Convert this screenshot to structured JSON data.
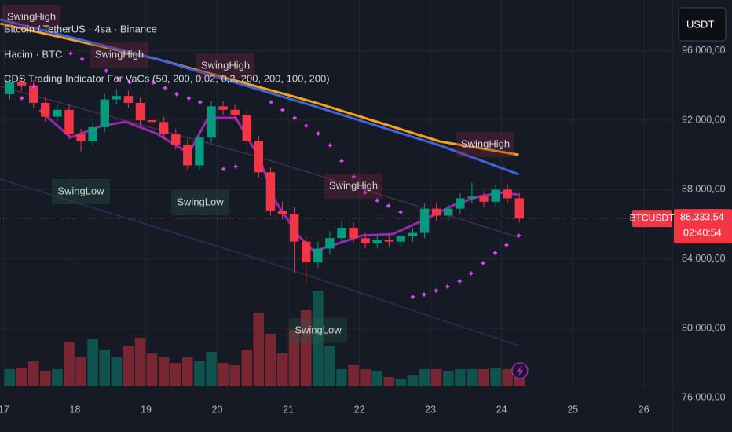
{
  "chart_data": {
    "type": "candlestick",
    "legend_lines": [
      "Bitcoin / TetherUS · 4sa · Binance",
      "Hacim · BTC",
      "CDS Trading Indicator For VaCs (50, 200, 0,02, 0,2, 200, 200, 100, 200)"
    ],
    "currency_button": "USDT",
    "up_color": "#089981",
    "down_color": "#f23645",
    "xlim": [
      16.945,
      26.39
    ],
    "ylim": [
      75700,
      98930
    ],
    "xticks": [
      17,
      18,
      19,
      20,
      21,
      22,
      23,
      24,
      25,
      26
    ],
    "yticks": [
      {
        "value": 76000,
        "label": "76.000,00"
      },
      {
        "value": 80000,
        "label": "80.000,00"
      },
      {
        "value": 84000,
        "label": "84.000,00"
      },
      {
        "value": 88000,
        "label": "88.000,00"
      },
      {
        "value": 92000,
        "label": "92.000,00"
      },
      {
        "value": 96000,
        "label": "96.000,00"
      }
    ],
    "grid": true,
    "x": [
      17.083,
      17.25,
      17.417,
      17.583,
      17.75,
      17.917,
      18.083,
      18.25,
      18.417,
      18.583,
      18.75,
      18.917,
      19.083,
      19.25,
      19.417,
      19.583,
      19.75,
      19.917,
      20.083,
      20.25,
      20.417,
      20.583,
      20.75,
      20.917,
      21.083,
      21.25,
      21.417,
      21.583,
      21.75,
      21.917,
      22.083,
      22.25,
      22.417,
      22.583,
      22.75,
      22.917,
      23.083,
      23.25,
      23.417,
      23.583,
      23.75,
      23.917,
      24.083,
      24.25
    ],
    "open": [
      93500,
      94200,
      94000,
      93000,
      92200,
      92600,
      91200,
      90800,
      91600,
      93200,
      93400,
      93000,
      92000,
      91900,
      91200,
      90600,
      89400,
      91000,
      92800,
      92600,
      92300,
      90800,
      89000,
      86800,
      86600,
      85000,
      83800,
      84600,
      85200,
      85800,
      85200,
      84900,
      85100,
      85000,
      85300,
      85500,
      86900,
      86500,
      86900,
      87500,
      87600,
      87300,
      88000,
      87500
    ],
    "high": [
      94500,
      94500,
      94300,
      93300,
      92900,
      92900,
      91500,
      91900,
      93500,
      93800,
      93700,
      93300,
      92300,
      92200,
      91500,
      90900,
      91300,
      93100,
      93100,
      92900,
      92600,
      91100,
      89300,
      87300,
      87000,
      85300,
      85000,
      85600,
      86200,
      86100,
      85500,
      85400,
      85400,
      85600,
      85800,
      87200,
      87200,
      87200,
      87800,
      88400,
      87900,
      88300,
      88300,
      87800
    ],
    "low": [
      93200,
      93700,
      92700,
      91900,
      91900,
      90900,
      90200,
      90500,
      91300,
      92900,
      92700,
      91700,
      91600,
      90900,
      90300,
      89100,
      89100,
      90700,
      92300,
      92000,
      90500,
      88700,
      86500,
      86300,
      83200,
      82600,
      83500,
      84300,
      84900,
      84900,
      84600,
      84600,
      84700,
      84700,
      85000,
      85200,
      86200,
      86200,
      86600,
      87200,
      87000,
      87000,
      87200,
      86100
    ],
    "close": [
      94200,
      94000,
      93000,
      92200,
      92600,
      91200,
      90800,
      91600,
      93200,
      93400,
      93000,
      92000,
      91900,
      91200,
      90600,
      89400,
      91000,
      92800,
      92600,
      92300,
      90800,
      89000,
      86800,
      86600,
      85000,
      83800,
      84600,
      85200,
      85800,
      85200,
      84900,
      85100,
      85000,
      85300,
      85500,
      86900,
      86500,
      86900,
      87500,
      87600,
      87300,
      88000,
      87500,
      86333.54
    ],
    "volume": [
      22,
      24,
      32,
      20,
      22,
      57,
      37,
      60,
      47,
      37,
      52,
      62,
      42,
      37,
      30,
      37,
      32,
      44,
      30,
      27,
      47,
      94,
      67,
      42,
      72,
      97,
      122,
      52,
      22,
      27,
      22,
      20,
      12,
      10,
      14,
      22,
      22,
      20,
      22,
      22,
      22,
      24,
      22,
      22
    ],
    "lines": [
      {
        "color": "#2a2e5a",
        "x": [
          16.95,
          20.59,
          24.24
        ],
        "values": [
          88605,
          83985,
          79000
        ]
      },
      {
        "color": "#4a2a55",
        "x": [
          16.95,
          20.59,
          24.24
        ],
        "values": [
          93950,
          89870,
          85250
        ]
      },
      {
        "color": "#f7a21b",
        "x": [
          16.95,
          19.15,
          21.36,
          23.13,
          24.24
        ],
        "values": [
          97570,
          95530,
          93040,
          90780,
          90010
        ]
      },
      {
        "color": "#3d63dd",
        "x": [
          16.95,
          19.15,
          21.36,
          23.13,
          24.24
        ],
        "values": [
          97800,
          95530,
          92815,
          90550,
          88880
        ]
      },
      {
        "color": "#9c27b0",
        "x": [
          17.5,
          17.94,
          18.38,
          18.71,
          19.15,
          19.6,
          19.87,
          20.26,
          20.59,
          20.81,
          21.14,
          21.36,
          21.7,
          22.03,
          22.47,
          22.91,
          23.35,
          23.69,
          24.02,
          24.24
        ],
        "values": [
          92590,
          91005,
          91680,
          91910,
          91230,
          90100,
          92135,
          92135,
          89870,
          87380,
          85345,
          84440,
          84890,
          85345,
          85435,
          86250,
          87155,
          87610,
          87835,
          87700
        ]
      }
    ],
    "sar": {
      "color": "#e040fb",
      "x": [
        17.25,
        17.42,
        17.94,
        18.1,
        18.44,
        18.6,
        18.77,
        19.1,
        19.27,
        19.43,
        19.6,
        19.76,
        20.09,
        20.26,
        20.76,
        20.92,
        21.09,
        21.25,
        21.42,
        21.59,
        21.75,
        21.92,
        22.08,
        22.25,
        22.41,
        22.58,
        22.75,
        22.91,
        23.08,
        23.24,
        23.41,
        23.57,
        23.74,
        23.91,
        24.07,
        24.24
      ],
      "values": [
        93270,
        93950,
        95850,
        95530,
        94850,
        94400,
        94175,
        94175,
        93860,
        93500,
        93270,
        93040,
        89190,
        89330,
        93040,
        92590,
        92135,
        91680,
        91230,
        90550,
        89645,
        88740,
        87835,
        87380,
        87065,
        86700,
        81810,
        81945,
        82170,
        82400,
        82715,
        83170,
        83760,
        84345,
        84800,
        85345
      ]
    },
    "annotations": [
      "SwingHigh",
      "SwingHigh",
      "SwingHigh",
      "SwingHigh",
      "SwingHigh",
      "SwingLow",
      "SwingLow",
      "SwingLow"
    ],
    "last_price": {
      "symbol": "BTCUSDT",
      "value": 86333.54,
      "label": "86.333,54",
      "countdown": "02:40:54"
    }
  }
}
